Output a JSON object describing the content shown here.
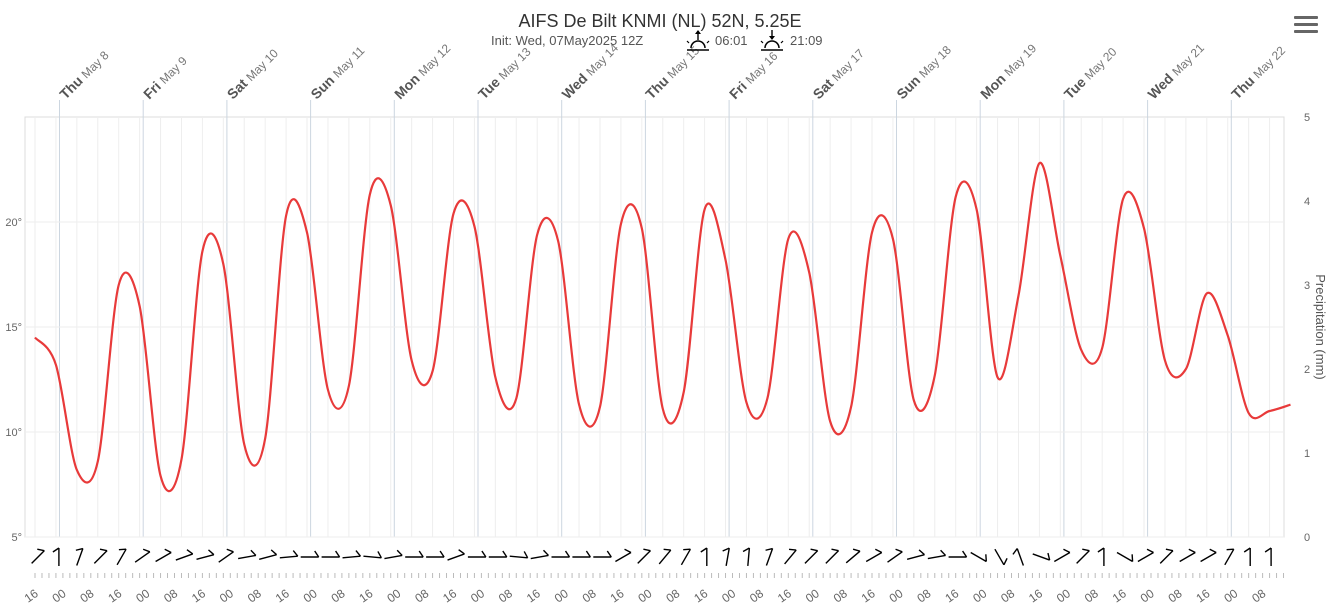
{
  "chart_data": {
    "type": "line",
    "title": "AIFS De Bilt KNMI (NL) 52N, 5.25E",
    "subtitle": {
      "init": "Init: Wed, 07May2025 12Z",
      "sunrise": "06:01",
      "sunset": "21:09"
    },
    "colors": {
      "temperature": "#e83a3a",
      "grid": "#e6e6e6",
      "wind_barb": "#000000"
    },
    "y_axis_left": {
      "ticks": [
        "5°",
        "10°",
        "15°",
        "20°"
      ],
      "tick_values": [
        5,
        10,
        15,
        20
      ],
      "ylim": [
        5,
        25
      ]
    },
    "y_axis_right": {
      "label": "Precipitation (mm)",
      "ticks": [
        "0",
        "1",
        "2",
        "3",
        "4",
        "5"
      ],
      "ylim": [
        0,
        5
      ]
    },
    "day_labels": [
      {
        "weekday": "Thu",
        "date": "May 8"
      },
      {
        "weekday": "Fri",
        "date": "May 9"
      },
      {
        "weekday": "Sat",
        "date": "May 10"
      },
      {
        "weekday": "Sun",
        "date": "May 11"
      },
      {
        "weekday": "Mon",
        "date": "May 12"
      },
      {
        "weekday": "Tue",
        "date": "May 13"
      },
      {
        "weekday": "Wed",
        "date": "May 14"
      },
      {
        "weekday": "Thu",
        "date": "May 15"
      },
      {
        "weekday": "Fri",
        "date": "May 16"
      },
      {
        "weekday": "Sat",
        "date": "May 17"
      },
      {
        "weekday": "Sun",
        "date": "May 18"
      },
      {
        "weekday": "Mon",
        "date": "May 19"
      },
      {
        "weekday": "Tue",
        "date": "May 20"
      },
      {
        "weekday": "Wed",
        "date": "May 21"
      },
      {
        "weekday": "Thu",
        "date": "May 22"
      }
    ],
    "hour_labels": [
      "16",
      "00",
      "08",
      "16",
      "00",
      "08",
      "16",
      "00",
      "08",
      "16",
      "00",
      "08",
      "16",
      "00",
      "08",
      "16",
      "00",
      "08",
      "16",
      "00",
      "08",
      "16",
      "00",
      "08",
      "16",
      "00",
      "08",
      "16",
      "00",
      "08",
      "16",
      "00",
      "08",
      "16",
      "00",
      "08",
      "16",
      "00",
      "08",
      "16",
      "00",
      "08",
      "16",
      "00",
      "08"
    ],
    "series": [
      {
        "name": "Temperature",
        "x_hours_from_may7_12z": [
          0,
          6,
          12,
          18,
          24,
          30,
          36,
          42,
          48,
          54,
          60,
          66,
          72,
          78,
          84,
          90,
          96,
          102,
          108,
          114,
          120,
          126,
          132,
          138,
          144,
          150,
          156,
          162,
          168,
          174,
          180,
          186,
          192,
          198,
          204,
          210,
          216,
          222,
          228,
          234,
          240,
          246,
          252,
          258,
          264,
          270,
          276,
          282,
          288,
          294,
          300,
          306,
          312,
          318,
          324,
          330,
          336,
          342,
          348,
          354,
          360
        ],
        "values": [
          14.5,
          13.2,
          8.2,
          8.6,
          17.0,
          16.0,
          7.9,
          8.7,
          18.6,
          18.0,
          9.4,
          9.7,
          20.3,
          19.5,
          12.0,
          12.2,
          21.3,
          20.8,
          13.4,
          12.9,
          20.4,
          19.8,
          12.6,
          11.6,
          19.4,
          19.1,
          11.3,
          11.2,
          19.9,
          19.7,
          11.1,
          11.9,
          20.6,
          18.2,
          11.4,
          11.6,
          19.2,
          17.6,
          10.5,
          11.2,
          19.5,
          19.2,
          11.5,
          12.7,
          21.2,
          20.6,
          12.6,
          16.5,
          22.8,
          18.4,
          13.9,
          14.0,
          21.1,
          19.7,
          13.4,
          13.0,
          16.6,
          14.6,
          10.9,
          11.0,
          11.3
        ]
      }
    ],
    "wind_barbs_deg": [
      225,
      180,
      200,
      225,
      210,
      235,
      240,
      250,
      255,
      235,
      260,
      255,
      265,
      270,
      270,
      265,
      275,
      260,
      270,
      270,
      250,
      270,
      270,
      275,
      260,
      270,
      270,
      270,
      240,
      225,
      220,
      210,
      180,
      190,
      185,
      200,
      220,
      225,
      225,
      230,
      240,
      235,
      255,
      260,
      270,
      300,
      330,
      160,
      290,
      240,
      225,
      180,
      300,
      240,
      225,
      240,
      240,
      210,
      180,
      180
    ]
  }
}
